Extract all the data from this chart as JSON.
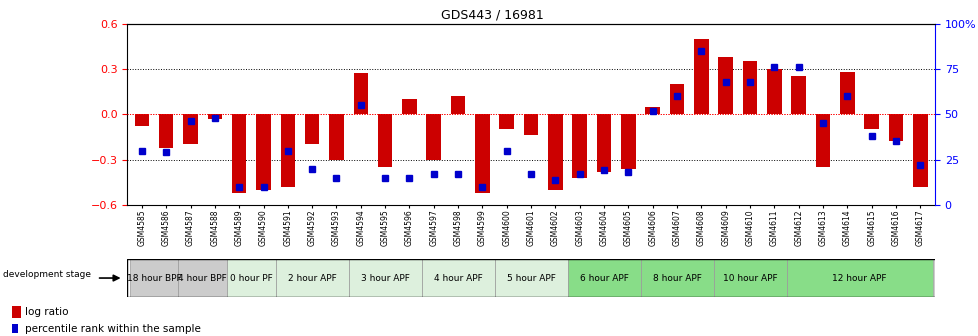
{
  "title": "GDS443 / 16981",
  "samples": [
    "GSM4585",
    "GSM4586",
    "GSM4587",
    "GSM4588",
    "GSM4589",
    "GSM4590",
    "GSM4591",
    "GSM4592",
    "GSM4593",
    "GSM4594",
    "GSM4595",
    "GSM4596",
    "GSM4597",
    "GSM4598",
    "GSM4599",
    "GSM4600",
    "GSM4601",
    "GSM4602",
    "GSM4603",
    "GSM4604",
    "GSM4605",
    "GSM4606",
    "GSM4607",
    "GSM4608",
    "GSM4609",
    "GSM4610",
    "GSM4611",
    "GSM4612",
    "GSM4613",
    "GSM4614",
    "GSM4615",
    "GSM4616",
    "GSM4617"
  ],
  "log_ratio": [
    -0.08,
    -0.22,
    -0.2,
    -0.03,
    -0.52,
    -0.5,
    -0.48,
    -0.2,
    -0.3,
    0.27,
    -0.35,
    0.1,
    -0.3,
    0.12,
    -0.52,
    -0.1,
    -0.14,
    -0.5,
    -0.42,
    -0.38,
    -0.36,
    0.05,
    0.2,
    0.5,
    0.38,
    0.35,
    0.3,
    0.25,
    -0.35,
    0.28,
    -0.1,
    -0.18,
    -0.48
  ],
  "percentile": [
    30,
    29,
    46,
    48,
    10,
    10,
    30,
    20,
    15,
    55,
    15,
    15,
    17,
    17,
    10,
    30,
    17,
    14,
    17,
    19,
    18,
    52,
    60,
    85,
    68,
    68,
    76,
    76,
    45,
    60,
    38,
    35,
    22
  ],
  "stages": [
    {
      "label": "18 hour BPF",
      "start": 0,
      "end": 2,
      "color": "#cccccc"
    },
    {
      "label": "4 hour BPF",
      "start": 2,
      "end": 4,
      "color": "#cccccc"
    },
    {
      "label": "0 hour PF",
      "start": 4,
      "end": 6,
      "color": "#ddf0dd"
    },
    {
      "label": "2 hour APF",
      "start": 6,
      "end": 9,
      "color": "#ddf0dd"
    },
    {
      "label": "3 hour APF",
      "start": 9,
      "end": 12,
      "color": "#ddf0dd"
    },
    {
      "label": "4 hour APF",
      "start": 12,
      "end": 15,
      "color": "#ddf0dd"
    },
    {
      "label": "5 hour APF",
      "start": 15,
      "end": 18,
      "color": "#ddf0dd"
    },
    {
      "label": "6 hour APF",
      "start": 18,
      "end": 21,
      "color": "#88dd88"
    },
    {
      "label": "8 hour APF",
      "start": 21,
      "end": 24,
      "color": "#88dd88"
    },
    {
      "label": "10 hour APF",
      "start": 24,
      "end": 27,
      "color": "#88dd88"
    },
    {
      "label": "12 hour APF",
      "start": 27,
      "end": 33,
      "color": "#88dd88"
    }
  ],
  "bar_color": "#cc0000",
  "dot_color": "#0000cc",
  "ylim_left": [
    -0.6,
    0.6
  ],
  "ylim_right": [
    0,
    100
  ],
  "yticks_left": [
    -0.6,
    -0.3,
    0.0,
    0.3,
    0.6
  ],
  "ytick_labels_right": [
    "0",
    "25",
    "50",
    "75",
    "100%"
  ]
}
